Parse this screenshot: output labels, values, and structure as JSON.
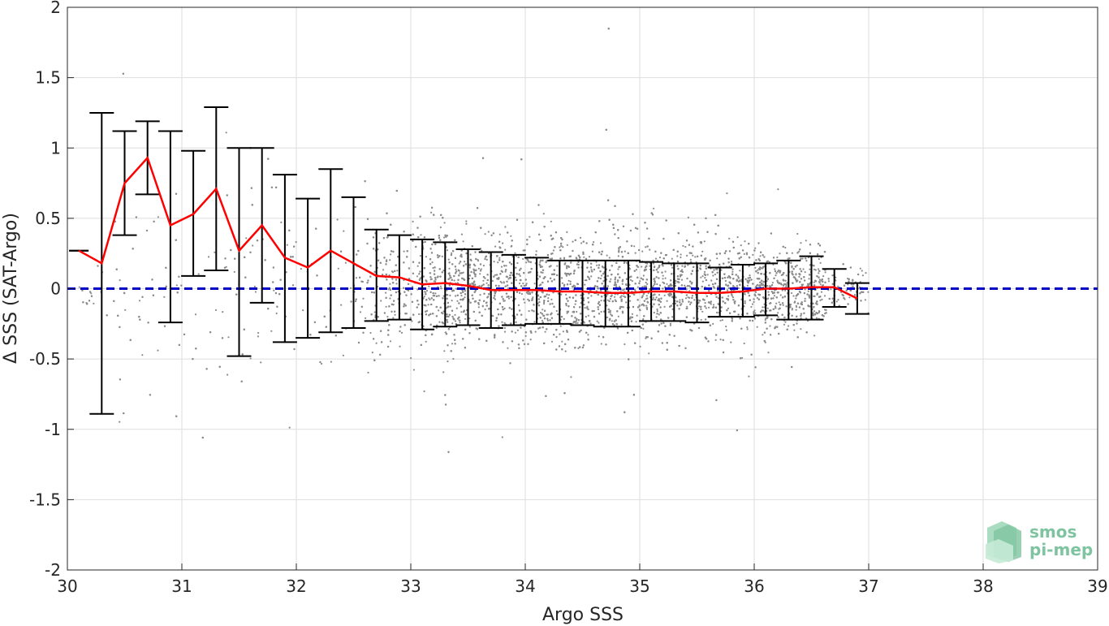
{
  "chart_data": {
    "type": "scatter",
    "xlabel": "Argo SSS",
    "ylabel": "Δ SSS (SAT-Argo)",
    "xlim": [
      30,
      39
    ],
    "ylim": [
      -2,
      2
    ],
    "xticks": [
      30,
      31,
      32,
      33,
      34,
      35,
      36,
      37,
      38,
      39
    ],
    "yticks": [
      -2,
      -1.5,
      -1,
      -0.5,
      0,
      0.5,
      1,
      1.5,
      2
    ],
    "xtick_labels": [
      "30",
      "31",
      "32",
      "33",
      "34",
      "35",
      "36",
      "37",
      "38",
      "39"
    ],
    "ytick_labels": [
      "-2",
      "-1.5",
      "-1",
      "-0.5",
      "0",
      "0.5",
      "1",
      "1.5",
      "2"
    ],
    "grid": true,
    "zero_line": {
      "y": 0,
      "style": "dashed",
      "color": "#0000cc"
    },
    "scatter": {
      "color": "#8c8c8c",
      "description": "dense cloud of individual satellite-minus-Argo salinity differences, concentrated between 33 and 36.6 Argo SSS",
      "envelope_std_approx": [
        {
          "x": 30.1,
          "sd": 0.0
        },
        {
          "x": 30.5,
          "sd": 0.45
        },
        {
          "x": 31.0,
          "sd": 0.4
        },
        {
          "x": 31.5,
          "sd": 0.5
        },
        {
          "x": 32.0,
          "sd": 0.35
        },
        {
          "x": 32.5,
          "sd": 0.3
        },
        {
          "x": 33.0,
          "sd": 0.22
        },
        {
          "x": 33.5,
          "sd": 0.2
        },
        {
          "x": 34.0,
          "sd": 0.2
        },
        {
          "x": 34.5,
          "sd": 0.2
        },
        {
          "x": 35.0,
          "sd": 0.19
        },
        {
          "x": 35.5,
          "sd": 0.18
        },
        {
          "x": 36.0,
          "sd": 0.16
        },
        {
          "x": 36.5,
          "sd": 0.14
        },
        {
          "x": 36.9,
          "sd": 0.05
        }
      ]
    },
    "series": [
      {
        "name": "",
        "color": "#ff0000",
        "x": [
          30.1,
          30.3,
          30.5,
          30.7,
          30.9,
          31.1,
          31.3,
          31.5,
          31.7,
          31.9,
          32.1,
          32.3,
          32.5,
          32.7,
          32.9,
          33.1,
          33.3,
          33.5,
          33.7,
          33.9,
          34.1,
          34.3,
          34.5,
          34.7,
          34.9,
          35.1,
          35.3,
          35.5,
          35.7,
          35.9,
          36.1,
          36.3,
          36.5,
          36.7,
          36.9
        ],
        "mean": [
          0.27,
          0.18,
          0.75,
          0.93,
          0.45,
          0.53,
          0.71,
          0.27,
          0.45,
          0.22,
          0.15,
          0.27,
          0.18,
          0.09,
          0.08,
          0.03,
          0.04,
          0.02,
          -0.01,
          -0.01,
          -0.01,
          -0.02,
          -0.02,
          -0.03,
          -0.03,
          -0.02,
          -0.02,
          -0.03,
          -0.03,
          -0.02,
          0.0,
          0.0,
          0.01,
          0.01,
          -0.07
        ],
        "err_low": [
          0.27,
          -0.89,
          0.38,
          0.67,
          -0.24,
          0.09,
          0.13,
          -0.48,
          -0.1,
          -0.38,
          -0.35,
          -0.31,
          -0.28,
          -0.23,
          -0.22,
          -0.29,
          -0.27,
          -0.26,
          -0.28,
          -0.26,
          -0.25,
          -0.25,
          -0.26,
          -0.27,
          -0.27,
          -0.23,
          -0.23,
          -0.24,
          -0.2,
          -0.2,
          -0.19,
          -0.22,
          -0.22,
          -0.13,
          -0.18
        ],
        "err_high": [
          0.27,
          1.25,
          1.12,
          1.19,
          1.12,
          0.98,
          1.29,
          1.0,
          1.0,
          0.81,
          0.64,
          0.85,
          0.65,
          0.42,
          0.38,
          0.35,
          0.33,
          0.28,
          0.26,
          0.24,
          0.22,
          0.2,
          0.2,
          0.2,
          0.2,
          0.19,
          0.18,
          0.18,
          0.15,
          0.17,
          0.18,
          0.2,
          0.23,
          0.14,
          0.04
        ]
      }
    ],
    "errorbar_color": "#000000"
  },
  "logo": {
    "line1": "smos",
    "line2": "pi-mep"
  }
}
